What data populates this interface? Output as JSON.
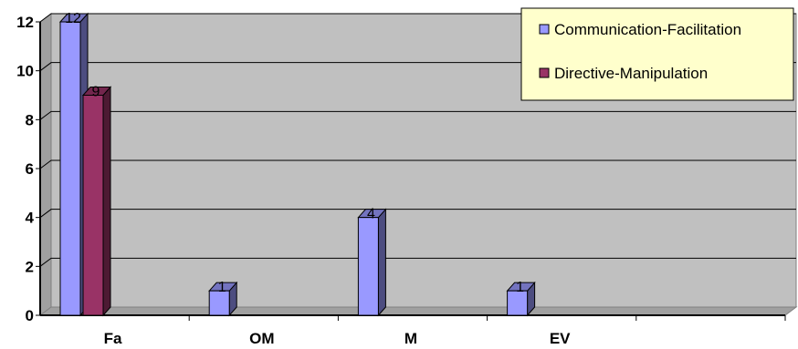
{
  "chart_data": {
    "type": "bar",
    "style": "3d-clustered-column",
    "categories": [
      "Fa",
      "OM",
      "M",
      "EV",
      ""
    ],
    "series": [
      {
        "name": "Communication-Facilitation",
        "values": [
          12,
          1,
          4,
          1,
          null
        ],
        "color": "#9999FF"
      },
      {
        "name": "Directive-Manipulation",
        "values": [
          9,
          null,
          null,
          null,
          null
        ],
        "color": "#993366"
      }
    ],
    "ylim": [
      0,
      12
    ],
    "yticks": [
      "0",
      "2",
      "4",
      "6",
      "8",
      "10",
      "12"
    ],
    "grid": true,
    "legend_position": "top-right",
    "colors": {
      "plot_wall": "#C0C0C0",
      "legend_bg": "#FFFFCC",
      "gridline": "#000000"
    }
  }
}
